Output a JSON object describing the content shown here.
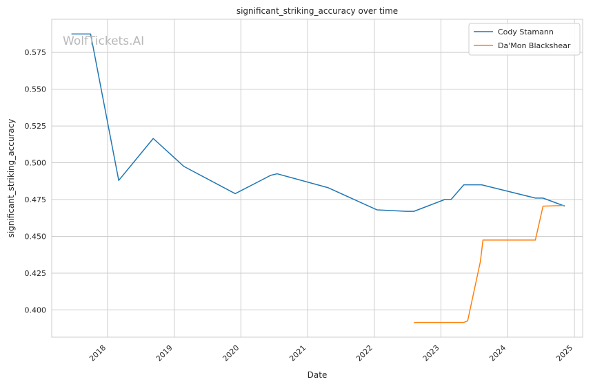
{
  "chart_data": {
    "type": "line",
    "title": "significant_striking_accuracy over time",
    "xlabel": "Date",
    "ylabel": "significant_striking_accuracy",
    "watermark": "WolfTickets.AI",
    "x_axis": "date",
    "xlim": [
      "2017-03-01",
      "2025-02-15"
    ],
    "ylim": [
      0.3815,
      0.5975
    ],
    "xticks": [
      {
        "date": "2018-01-01",
        "label": "2018"
      },
      {
        "date": "2019-01-01",
        "label": "2019"
      },
      {
        "date": "2020-01-01",
        "label": "2020"
      },
      {
        "date": "2021-01-01",
        "label": "2021"
      },
      {
        "date": "2022-01-01",
        "label": "2022"
      },
      {
        "date": "2023-01-01",
        "label": "2023"
      },
      {
        "date": "2024-01-01",
        "label": "2024"
      },
      {
        "date": "2025-01-01",
        "label": "2025"
      }
    ],
    "yticks": [
      {
        "value": 0.4,
        "label": "0.400"
      },
      {
        "value": 0.425,
        "label": "0.425"
      },
      {
        "value": 0.45,
        "label": "0.450"
      },
      {
        "value": 0.475,
        "label": "0.475"
      },
      {
        "value": 0.5,
        "label": "0.500"
      },
      {
        "value": 0.525,
        "label": "0.525"
      },
      {
        "value": 0.55,
        "label": "0.550"
      },
      {
        "value": 0.575,
        "label": "0.575"
      }
    ],
    "grid": true,
    "legend_position": "top-right",
    "series": [
      {
        "name": "Cody Stamann",
        "color": "#1f77b4",
        "points": [
          {
            "x": "2017-06-17",
            "y": 0.5875
          },
          {
            "x": "2017-09-30",
            "y": 0.5875
          },
          {
            "x": "2018-03-03",
            "y": 0.488
          },
          {
            "x": "2018-09-08",
            "y": 0.5165
          },
          {
            "x": "2019-02-23",
            "y": 0.4975
          },
          {
            "x": "2019-12-01",
            "y": 0.479
          },
          {
            "x": "2020-06-13",
            "y": 0.4915
          },
          {
            "x": "2020-07-18",
            "y": 0.4925
          },
          {
            "x": "2021-04-24",
            "y": 0.483
          },
          {
            "x": "2022-01-15",
            "y": 0.468
          },
          {
            "x": "2022-06-25",
            "y": 0.467
          },
          {
            "x": "2022-08-06",
            "y": 0.467
          },
          {
            "x": "2023-01-21",
            "y": 0.475
          },
          {
            "x": "2023-02-25",
            "y": 0.475
          },
          {
            "x": "2023-05-06",
            "y": 0.485
          },
          {
            "x": "2023-08-12",
            "y": 0.485
          },
          {
            "x": "2024-06-01",
            "y": 0.476
          },
          {
            "x": "2024-07-13",
            "y": 0.476
          },
          {
            "x": "2024-11-09",
            "y": 0.4705
          }
        ]
      },
      {
        "name": "Da'Mon Blackshear",
        "color": "#ff7f0e",
        "points": [
          {
            "x": "2022-08-06",
            "y": 0.3915
          },
          {
            "x": "2023-05-06",
            "y": 0.3915
          },
          {
            "x": "2023-05-27",
            "y": 0.3925
          },
          {
            "x": "2023-08-05",
            "y": 0.433
          },
          {
            "x": "2023-08-19",
            "y": 0.4475
          },
          {
            "x": "2024-06-01",
            "y": 0.4475
          },
          {
            "x": "2024-07-13",
            "y": 0.4705
          },
          {
            "x": "2024-11-09",
            "y": 0.471
          }
        ]
      }
    ]
  }
}
